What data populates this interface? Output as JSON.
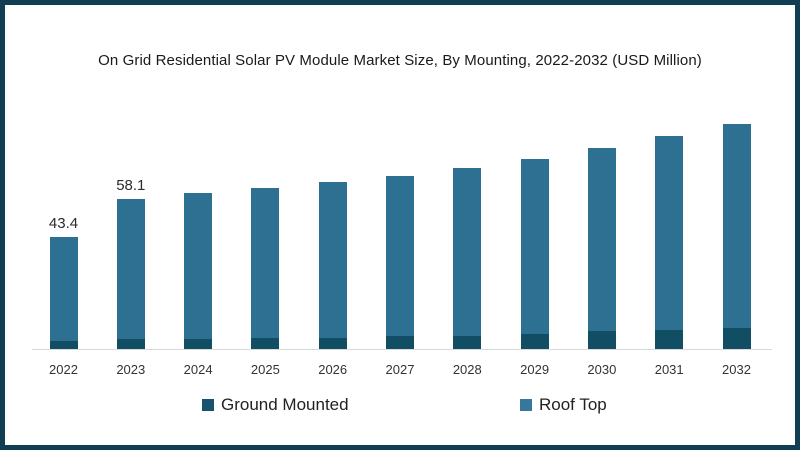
{
  "frame": {
    "border_color": "#113e52",
    "background_color": "#ffffff"
  },
  "title": "On Grid Residential Solar PV Module Market Size, By Mounting, 2022-2032 (USD Million)",
  "chart_data": {
    "type": "bar",
    "stacked": true,
    "title": "On Grid Residential Solar PV Module Market Size, By Mounting, 2022-2032 (USD Million)",
    "categories": [
      "2022",
      "2023",
      "2024",
      "2025",
      "2026",
      "2027",
      "2028",
      "2029",
      "2030",
      "2031",
      "2032"
    ],
    "series": [
      {
        "name": "Ground Mounted",
        "color": "#114d63",
        "values": [
          3.1,
          3.8,
          4.0,
          4.1,
          4.3,
          4.9,
          5.2,
          6.0,
          7.0,
          7.4,
          8.0
        ]
      },
      {
        "name": "Roof Top",
        "color": "#2e7091",
        "values": [
          40.3,
          54.3,
          56.5,
          58.4,
          60.5,
          62.2,
          65.0,
          67.7,
          71.0,
          75.2,
          79.5
        ]
      }
    ],
    "totals": [
      43.4,
      58.1,
      60.5,
      62.5,
      64.8,
      67.1,
      70.2,
      73.7,
      78.0,
      82.6,
      87.5
    ],
    "value_labels": [
      "43.4",
      "58.1",
      "",
      "",
      "",
      "",
      "",
      "",
      "",
      "",
      ""
    ],
    "xlabel": "",
    "ylabel": "",
    "y_axis_visible": false,
    "grid": false,
    "legend_position": "bottom",
    "axis_line_color": "#d9d9d9",
    "tick_label_color": "#333333",
    "value_label_color": "#2b2b2b"
  },
  "legend": {
    "items": [
      {
        "label": "Ground Mounted",
        "color": "#17536f"
      },
      {
        "label": "Roof Top",
        "color": "#35789c"
      }
    ]
  }
}
